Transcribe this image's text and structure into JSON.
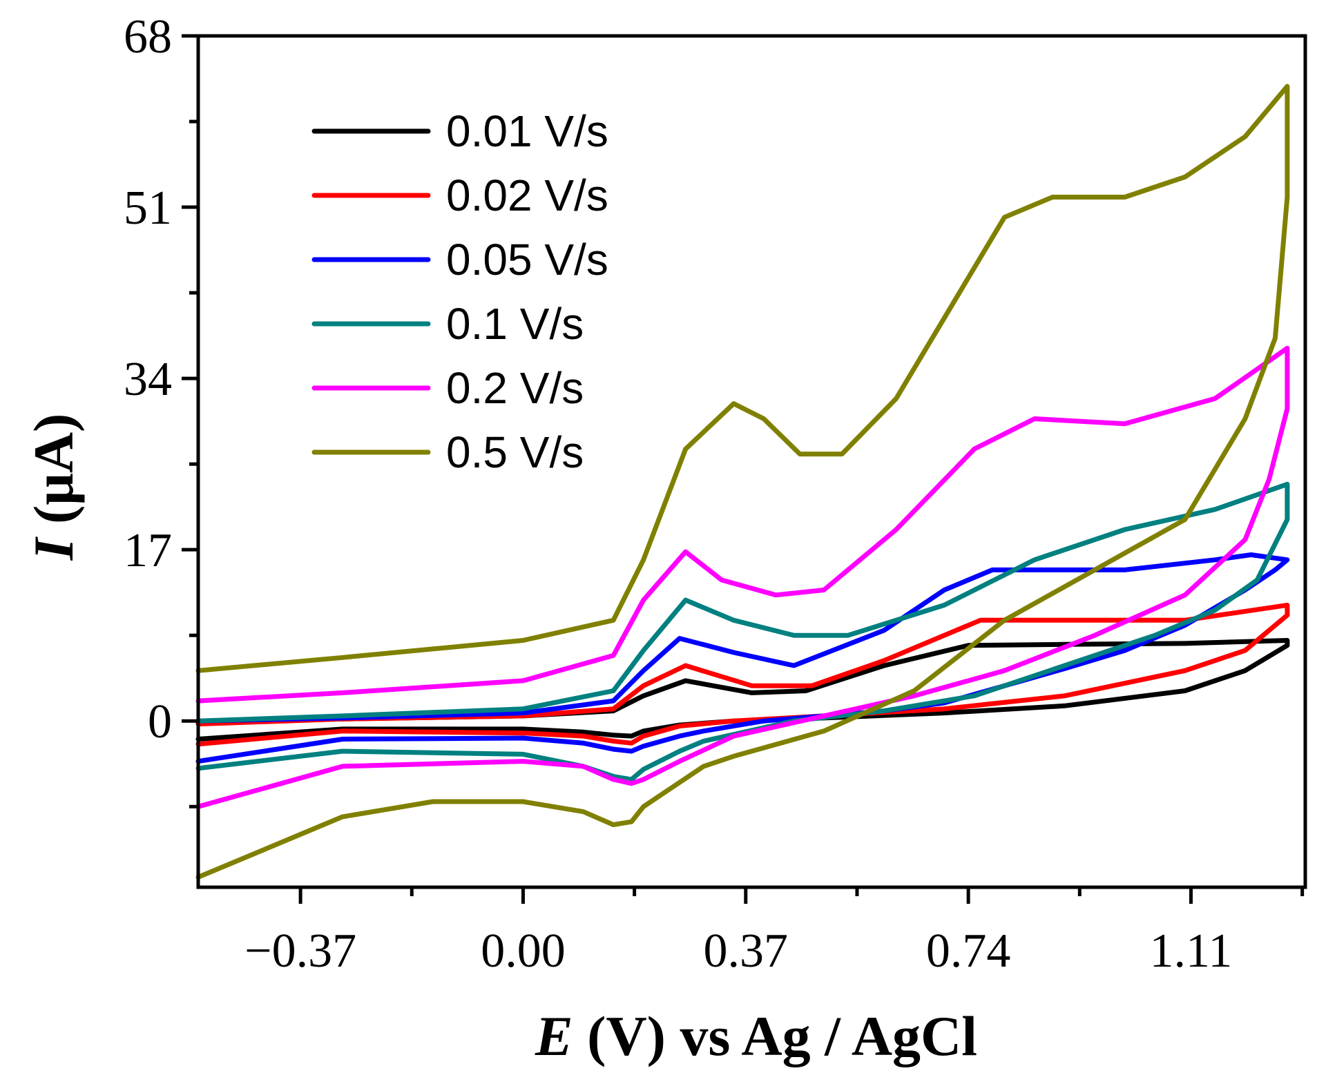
{
  "chart_data": {
    "type": "line",
    "title": "",
    "xlabel": {
      "symbol": "E",
      "rest": " (V) vs Ag / AgCl"
    },
    "ylabel": {
      "symbol": "I",
      "rest": " (μA)"
    },
    "xlim": [
      -0.54,
      1.3
    ],
    "ylim": [
      -16.5,
      68
    ],
    "xticks": [
      {
        "value": -0.37,
        "label": "−0.37"
      },
      {
        "value": 0.0,
        "label": "0.00"
      },
      {
        "value": 0.37,
        "label": "0.37"
      },
      {
        "value": 0.74,
        "label": "0.74"
      },
      {
        "value": 1.11,
        "label": "1.11"
      }
    ],
    "yticks": [
      {
        "value": 0,
        "label": "0"
      },
      {
        "value": 17,
        "label": "17"
      },
      {
        "value": 34,
        "label": "34"
      },
      {
        "value": 51,
        "label": "51"
      },
      {
        "value": 68,
        "label": "68"
      }
    ],
    "grid": false,
    "legend_position": "top-left",
    "series": [
      {
        "name": "0.01 V/s",
        "color": "#000000",
        "x": [
          -0.54,
          -0.3,
          0.0,
          0.15,
          0.2,
          0.27,
          0.38,
          0.47,
          0.6,
          0.74,
          0.9,
          1.1,
          1.27,
          1.27,
          1.2,
          1.1,
          0.9,
          0.7,
          0.5,
          0.35,
          0.26,
          0.2,
          0.18,
          0.15,
          0.1,
          0.0,
          -0.3,
          -0.54
        ],
        "y": [
          -0.2,
          0.2,
          0.5,
          1.0,
          2.5,
          4.0,
          2.8,
          3.0,
          5.5,
          7.5,
          7.6,
          7.7,
          8.0,
          7.5,
          5.0,
          3.0,
          1.5,
          0.8,
          0.3,
          0.0,
          -0.4,
          -1.0,
          -1.5,
          -1.4,
          -1.1,
          -0.8,
          -0.8,
          -1.8
        ]
      },
      {
        "name": "0.02 V/s",
        "color": "#ff0000",
        "x": [
          -0.54,
          -0.3,
          0.0,
          0.15,
          0.2,
          0.27,
          0.38,
          0.48,
          0.6,
          0.76,
          0.9,
          1.1,
          1.27,
          1.27,
          1.2,
          1.1,
          0.9,
          0.7,
          0.5,
          0.35,
          0.26,
          0.2,
          0.18,
          0.15,
          0.1,
          0.0,
          -0.3,
          -0.54
        ],
        "y": [
          -0.3,
          0.2,
          0.5,
          1.2,
          3.5,
          5.5,
          3.5,
          3.5,
          6.0,
          10.0,
          10.0,
          10.0,
          11.5,
          10.5,
          7.0,
          5.0,
          2.5,
          1.2,
          0.5,
          0.0,
          -0.5,
          -1.5,
          -2.2,
          -2.0,
          -1.5,
          -1.2,
          -1.0,
          -2.3
        ]
      },
      {
        "name": "0.05 V/s",
        "color": "#0000ff",
        "x": [
          -0.54,
          -0.3,
          0.0,
          0.15,
          0.2,
          0.26,
          0.35,
          0.45,
          0.6,
          0.7,
          0.78,
          0.9,
          1.0,
          1.15,
          1.21,
          1.27,
          1.25,
          1.2,
          1.1,
          1.0,
          0.9,
          0.8,
          0.7,
          0.6,
          0.5,
          0.4,
          0.3,
          0.26,
          0.2,
          0.18,
          0.15,
          0.1,
          0.0,
          -0.3,
          -0.54
        ],
        "y": [
          0.0,
          0.3,
          0.8,
          2.0,
          5.0,
          8.2,
          6.8,
          5.5,
          9.0,
          13.0,
          15.0,
          15.0,
          15.0,
          16.0,
          16.5,
          16.0,
          15.0,
          13.0,
          9.5,
          7.0,
          5.2,
          3.5,
          1.8,
          1.0,
          0.5,
          0.0,
          -1.0,
          -1.5,
          -2.5,
          -3.0,
          -2.8,
          -2.2,
          -1.7,
          -1.8,
          -4.0
        ]
      },
      {
        "name": "0.1 V/s",
        "color": "#008080",
        "x": [
          -0.54,
          -0.3,
          0.0,
          0.15,
          0.2,
          0.27,
          0.35,
          0.45,
          0.54,
          0.7,
          0.85,
          1.0,
          1.15,
          1.27,
          1.27,
          1.22,
          1.15,
          1.05,
          0.9,
          0.75,
          0.6,
          0.45,
          0.3,
          0.26,
          0.2,
          0.18,
          0.15,
          0.1,
          0.0,
          -0.3,
          -0.54
        ],
        "y": [
          0.0,
          0.5,
          1.2,
          3.0,
          7.0,
          12.0,
          10.0,
          8.5,
          8.5,
          11.5,
          16.0,
          19.0,
          21.0,
          23.5,
          20.0,
          14.0,
          11.0,
          8.5,
          5.5,
          2.5,
          1.0,
          0.0,
          -2.0,
          -3.0,
          -4.8,
          -5.8,
          -5.5,
          -4.5,
          -3.3,
          -3.0,
          -4.7
        ]
      },
      {
        "name": "0.2 V/s",
        "color": "#ff00ff",
        "x": [
          -0.54,
          -0.3,
          0.0,
          0.15,
          0.2,
          0.27,
          0.33,
          0.42,
          0.5,
          0.62,
          0.75,
          0.85,
          1.0,
          1.15,
          1.27,
          1.27,
          1.24,
          1.2,
          1.1,
          0.95,
          0.8,
          0.65,
          0.5,
          0.35,
          0.26,
          0.2,
          0.18,
          0.15,
          0.1,
          0.0,
          -0.3,
          -0.54
        ],
        "y": [
          2.0,
          2.8,
          4.0,
          6.5,
          12.0,
          16.8,
          14.0,
          12.5,
          13.0,
          19.0,
          27.0,
          30.0,
          29.5,
          32.0,
          37.0,
          31.0,
          24.0,
          18.0,
          12.5,
          8.5,
          5.0,
          2.5,
          0.5,
          -1.5,
          -4.0,
          -5.8,
          -6.2,
          -5.8,
          -4.5,
          -4.0,
          -4.5,
          -8.5
        ]
      },
      {
        "name": "0.5 V/s",
        "color": "#808000",
        "x": [
          -0.54,
          -0.3,
          0.0,
          0.15,
          0.2,
          0.27,
          0.35,
          0.4,
          0.46,
          0.53,
          0.62,
          0.72,
          0.8,
          0.88,
          0.95,
          1.0,
          1.1,
          1.2,
          1.27,
          1.27,
          1.25,
          1.2,
          1.1,
          0.95,
          0.8,
          0.65,
          0.5,
          0.35,
          0.3,
          0.25,
          0.2,
          0.18,
          0.15,
          0.1,
          0.0,
          -0.15,
          -0.3,
          -0.54
        ],
        "y": [
          5.0,
          6.3,
          8.0,
          10.0,
          16.0,
          27.0,
          31.5,
          30.0,
          26.5,
          26.5,
          32.0,
          42.0,
          50.0,
          52.0,
          52.0,
          52.0,
          54.0,
          58.0,
          63.0,
          52.0,
          38.0,
          30.0,
          20.0,
          15.0,
          10.0,
          3.0,
          -1.0,
          -3.5,
          -4.5,
          -6.5,
          -8.5,
          -10.0,
          -10.3,
          -9.0,
          -8.0,
          -8.0,
          -9.5,
          -15.5
        ]
      }
    ]
  }
}
